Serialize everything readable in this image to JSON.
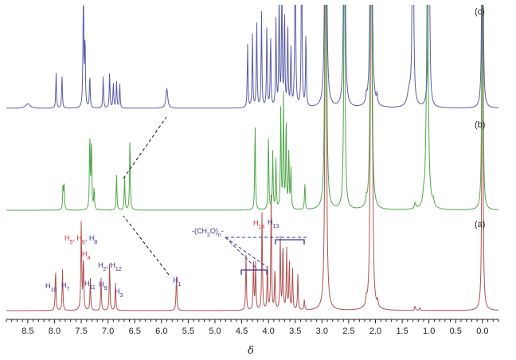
{
  "colors": {
    "trace_a": "#b0504e",
    "trace_b": "#4fa64a",
    "trace_c": "#5a5aa6",
    "label_red": "#d03030",
    "label_blue": "#333399",
    "axis": "#222222"
  },
  "chart_data": {
    "type": "line",
    "title": "",
    "xlabel": "δ",
    "ylabel": "",
    "xlim": [
      8.9,
      -0.3
    ],
    "x_reversed": true,
    "x_ticks": [
      "8.5",
      "8.0",
      "7.5",
      "7.0",
      "6.5",
      "6.0",
      "5.5",
      "5.0",
      "4.5",
      "4.0",
      "3.5",
      "3.0",
      "2.5",
      "2.0",
      "1.5",
      "1.0",
      "0.5",
      "0.0"
    ],
    "x_tick_values": [
      8.5,
      8.0,
      7.5,
      7.0,
      6.5,
      6.0,
      5.5,
      5.0,
      4.5,
      4.0,
      3.5,
      3.0,
      2.5,
      2.0,
      1.5,
      1.0,
      0.5,
      0.0
    ],
    "series": [
      {
        "name": "(a)",
        "peaks": [
          {
            "ppm": 7.98,
            "h": 0.28,
            "w": 0.008
          },
          {
            "ppm": 7.85,
            "h": 0.27,
            "w": 0.008
          },
          {
            "ppm": 7.5,
            "h": 0.58,
            "w": 0.009
          },
          {
            "ppm": 7.46,
            "h": 0.35,
            "w": 0.008
          },
          {
            "ppm": 7.33,
            "h": 0.21,
            "w": 0.008
          },
          {
            "ppm": 7.13,
            "h": 0.22,
            "w": 0.008
          },
          {
            "ppm": 6.97,
            "h": 0.33,
            "w": 0.008
          },
          {
            "ppm": 6.86,
            "h": 0.18,
            "w": 0.008
          },
          {
            "ppm": 5.72,
            "h": 0.23,
            "w": 0.009
          },
          {
            "ppm": 4.42,
            "h": 0.37,
            "w": 0.008
          },
          {
            "ppm": 4.28,
            "h": 0.33,
            "w": 0.008
          },
          {
            "ppm": 4.24,
            "h": 0.31,
            "w": 0.008
          },
          {
            "ppm": 4.12,
            "h": 0.66,
            "w": 0.008
          },
          {
            "ppm": 4.02,
            "h": 0.31,
            "w": 0.008
          },
          {
            "ppm": 3.95,
            "h": 0.75,
            "w": 0.008
          },
          {
            "ppm": 3.88,
            "h": 0.28,
            "w": 0.008
          },
          {
            "ppm": 3.78,
            "h": 0.48,
            "w": 0.008
          },
          {
            "ppm": 3.73,
            "h": 0.45,
            "w": 0.008
          },
          {
            "ppm": 3.66,
            "h": 0.4,
            "w": 0.008
          },
          {
            "ppm": 3.61,
            "h": 0.33,
            "w": 0.008
          },
          {
            "ppm": 3.55,
            "h": 0.28,
            "w": 0.008
          },
          {
            "ppm": 3.45,
            "h": 0.24,
            "w": 0.008
          },
          {
            "ppm": 3.33,
            "h": 0.07,
            "w": 0.008
          },
          {
            "ppm": 2.93,
            "h": 4.0,
            "w": 0.012
          },
          {
            "ppm": 2.08,
            "h": 4.0,
            "w": 0.012
          },
          {
            "ppm": 2.05,
            "h": 0.5,
            "w": 0.01
          },
          {
            "ppm": 2.17,
            "h": 0.05,
            "w": 0.01
          },
          {
            "ppm": 1.96,
            "h": 0.04,
            "w": 0.01
          },
          {
            "ppm": 1.26,
            "h": 0.03,
            "w": 0.01
          },
          {
            "ppm": 1.17,
            "h": 0.02,
            "w": 0.01
          },
          {
            "ppm": 0.0,
            "h": 4.0,
            "w": 0.008
          }
        ]
      },
      {
        "name": "(b)",
        "peaks": [
          {
            "ppm": 7.84,
            "h": 0.17,
            "w": 0.008
          },
          {
            "ppm": 7.82,
            "h": 0.15,
            "w": 0.008
          },
          {
            "ppm": 7.34,
            "h": 0.5,
            "w": 0.008
          },
          {
            "ppm": 7.31,
            "h": 0.46,
            "w": 0.008
          },
          {
            "ppm": 7.26,
            "h": 0.14,
            "w": 0.008
          },
          {
            "ppm": 6.84,
            "h": 0.24,
            "w": 0.008
          },
          {
            "ppm": 6.69,
            "h": 0.22,
            "w": 0.008
          },
          {
            "ppm": 6.59,
            "h": 0.49,
            "w": 0.008
          },
          {
            "ppm": 4.25,
            "h": 0.58,
            "w": 0.008
          },
          {
            "ppm": 4.0,
            "h": 0.5,
            "w": 0.008
          },
          {
            "ppm": 3.92,
            "h": 0.38,
            "w": 0.008
          },
          {
            "ppm": 3.86,
            "h": 0.33,
            "w": 0.008
          },
          {
            "ppm": 3.77,
            "h": 0.68,
            "w": 0.008
          },
          {
            "ppm": 3.72,
            "h": 0.75,
            "w": 0.008
          },
          {
            "ppm": 3.67,
            "h": 0.6,
            "w": 0.008
          },
          {
            "ppm": 3.62,
            "h": 0.4,
            "w": 0.008
          },
          {
            "ppm": 3.58,
            "h": 0.28,
            "w": 0.008
          },
          {
            "ppm": 3.32,
            "h": 0.18,
            "w": 0.008
          },
          {
            "ppm": 2.93,
            "h": 4.0,
            "w": 0.012
          },
          {
            "ppm": 2.58,
            "h": 2.2,
            "w": 0.012
          },
          {
            "ppm": 2.08,
            "h": 4.0,
            "w": 0.012
          },
          {
            "ppm": 2.17,
            "h": 0.05,
            "w": 0.01
          },
          {
            "ppm": 1.26,
            "h": 0.04,
            "w": 0.015
          },
          {
            "ppm": 1.1,
            "h": 0.05,
            "w": 0.015
          },
          {
            "ppm": 1.03,
            "h": 1.6,
            "w": 0.02
          },
          {
            "ppm": 0.92,
            "h": 0.04,
            "w": 0.02
          },
          {
            "ppm": 0.0,
            "h": 4.0,
            "w": 0.008
          }
        ]
      },
      {
        "name": "(c)",
        "peaks": [
          {
            "ppm": 8.5,
            "h": 0.03,
            "w": 0.05
          },
          {
            "ppm": 7.97,
            "h": 0.23,
            "w": 0.008
          },
          {
            "ppm": 7.86,
            "h": 0.22,
            "w": 0.008
          },
          {
            "ppm": 7.46,
            "h": 0.75,
            "w": 0.009
          },
          {
            "ppm": 7.43,
            "h": 0.45,
            "w": 0.008
          },
          {
            "ppm": 7.34,
            "h": 0.22,
            "w": 0.008
          },
          {
            "ppm": 7.09,
            "h": 0.21,
            "w": 0.008
          },
          {
            "ppm": 6.97,
            "h": 0.24,
            "w": 0.008
          },
          {
            "ppm": 6.9,
            "h": 0.17,
            "w": 0.008
          },
          {
            "ppm": 6.84,
            "h": 0.18,
            "w": 0.008
          },
          {
            "ppm": 6.78,
            "h": 0.16,
            "w": 0.008
          },
          {
            "ppm": 5.9,
            "h": 0.13,
            "w": 0.02
          },
          {
            "ppm": 4.39,
            "h": 0.42,
            "w": 0.008
          },
          {
            "ppm": 4.3,
            "h": 0.48,
            "w": 0.008
          },
          {
            "ppm": 4.22,
            "h": 0.58,
            "w": 0.008
          },
          {
            "ppm": 4.13,
            "h": 0.64,
            "w": 0.008
          },
          {
            "ppm": 4.03,
            "h": 0.55,
            "w": 0.008
          },
          {
            "ppm": 3.96,
            "h": 0.48,
            "w": 0.008
          },
          {
            "ppm": 3.86,
            "h": 0.58,
            "w": 0.008
          },
          {
            "ppm": 3.8,
            "h": 0.75,
            "w": 0.008
          },
          {
            "ppm": 3.75,
            "h": 0.85,
            "w": 0.008
          },
          {
            "ppm": 3.7,
            "h": 0.65,
            "w": 0.008
          },
          {
            "ppm": 3.64,
            "h": 0.55,
            "w": 0.008
          },
          {
            "ppm": 3.58,
            "h": 0.4,
            "w": 0.008
          },
          {
            "ppm": 3.5,
            "h": 1.5,
            "w": 0.008
          },
          {
            "ppm": 3.38,
            "h": 1.3,
            "w": 0.008
          },
          {
            "ppm": 3.3,
            "h": 0.5,
            "w": 0.008
          },
          {
            "ppm": 2.93,
            "h": 4.0,
            "w": 0.012
          },
          {
            "ppm": 2.58,
            "h": 2.8,
            "w": 0.012
          },
          {
            "ppm": 2.08,
            "h": 4.0,
            "w": 0.012
          },
          {
            "ppm": 2.17,
            "h": 0.05,
            "w": 0.01
          },
          {
            "ppm": 1.97,
            "h": 0.06,
            "w": 0.01
          },
          {
            "ppm": 1.37,
            "h": 0.1,
            "w": 0.04
          },
          {
            "ppm": 1.3,
            "h": 2.0,
            "w": 0.012
          },
          {
            "ppm": 1.0,
            "h": 2.0,
            "w": 0.012
          },
          {
            "ppm": 0.0,
            "h": 4.0,
            "w": 0.008
          }
        ]
      }
    ],
    "annotations": [
      {
        "id": "h10",
        "parts": [
          {
            "t": "H",
            "c": "blue"
          },
          {
            "t": "10",
            "c": "blue",
            "sub": true
          }
        ],
        "ppm": 7.98
      },
      {
        "id": "h7",
        "parts": [
          {
            "t": "H",
            "c": "blue"
          },
          {
            "t": "7",
            "c": "blue",
            "sub": true
          }
        ],
        "ppm": 7.85
      },
      {
        "id": "h5h6h8",
        "parts": [
          {
            "t": "H",
            "c": "red"
          },
          {
            "t": "5",
            "c": "red",
            "sub": true
          },
          {
            "t": ", ",
            "c": "red"
          },
          {
            "t": "H",
            "c": "red"
          },
          {
            "t": "6",
            "c": "red",
            "sub": true
          },
          {
            "t": ", H",
            "c": "blue"
          },
          {
            "t": "8",
            "c": "blue",
            "sub": true
          }
        ],
        "ppm": 7.5
      },
      {
        "id": "h4",
        "parts": [
          {
            "t": "H",
            "c": "red"
          },
          {
            "t": "4",
            "c": "red",
            "sub": true
          }
        ],
        "ppm": 7.46
      },
      {
        "id": "h11",
        "parts": [
          {
            "t": "H",
            "c": "blue"
          },
          {
            "t": "11",
            "c": "blue",
            "sub": true
          }
        ],
        "ppm": 7.33
      },
      {
        "id": "h9",
        "parts": [
          {
            "t": "H",
            "c": "blue"
          },
          {
            "t": "9",
            "c": "blue",
            "sub": true
          }
        ],
        "ppm": 7.13
      },
      {
        "id": "h2h12",
        "parts": [
          {
            "t": "H",
            "c": "blue"
          },
          {
            "t": "2",
            "c": "blue",
            "sub": true
          },
          {
            "t": ", H",
            "c": "blue"
          },
          {
            "t": "12",
            "c": "blue",
            "sub": true
          }
        ],
        "ppm": 6.97
      },
      {
        "id": "h3",
        "parts": [
          {
            "t": "H",
            "c": "blue"
          },
          {
            "t": "3",
            "c": "blue",
            "sub": true
          }
        ],
        "ppm": 6.86
      },
      {
        "id": "h1",
        "parts": [
          {
            "t": "H",
            "c": "blue"
          },
          {
            "t": "1",
            "c": "blue",
            "sub": true
          }
        ],
        "ppm": 5.72
      },
      {
        "id": "ch2o",
        "parts": [
          {
            "t": "-(CH",
            "c": "blue"
          },
          {
            "t": "2",
            "c": "blue",
            "sub": true
          },
          {
            "t": "O)",
            "c": "blue"
          },
          {
            "t": "n",
            "c": "blue",
            "sub": true
          },
          {
            "t": "-",
            "c": "blue"
          }
        ],
        "ppm": 4.2
      },
      {
        "id": "h14",
        "parts": [
          {
            "t": "H",
            "c": "red"
          },
          {
            "t": "14",
            "c": "red",
            "sub": true
          }
        ],
        "ppm": 4.12
      },
      {
        "id": "h13",
        "parts": [
          {
            "t": "H",
            "c": "blue"
          },
          {
            "t": "13",
            "c": "blue",
            "sub": true
          }
        ],
        "ppm": 3.95
      }
    ],
    "panel_labels": [
      "(a)",
      "(b)",
      "(c)"
    ]
  }
}
